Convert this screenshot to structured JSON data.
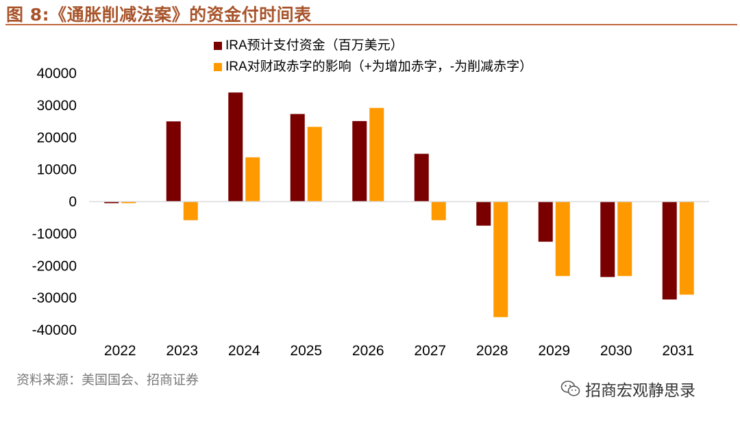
{
  "figure": {
    "title": "图 8:《通胀削减法案》的资金付时间表",
    "source": "资料来源：美国国会、招商证券",
    "watermark": "招商宏观静思录"
  },
  "colors": {
    "series1": "#7a0000",
    "series2": "#ff9900",
    "title": "#a8542b",
    "axis": "#d9d9d9"
  },
  "chart_data": {
    "type": "bar",
    "title": "",
    "xlabel": "",
    "ylabel": "",
    "ylim": [
      -40000,
      40000
    ],
    "yticks": [
      40000,
      30000,
      20000,
      10000,
      0,
      -10000,
      -20000,
      -30000,
      -40000
    ],
    "categories": [
      "2022",
      "2023",
      "2024",
      "2025",
      "2026",
      "2027",
      "2028",
      "2029",
      "2030",
      "2031"
    ],
    "legend_position": "top-center",
    "series": [
      {
        "name": "IRA预计支付资金（百万美元）",
        "color": "#7a0000",
        "values": [
          -500,
          25000,
          34000,
          27300,
          25100,
          14900,
          -7500,
          -12500,
          -23500,
          -30500
        ]
      },
      {
        "name": "IRA对财政赤字的影响（+为增加赤字，-为削减赤字）",
        "color": "#ff9900",
        "values": [
          -500,
          -5800,
          13800,
          23300,
          29200,
          -5800,
          -36000,
          -23200,
          -23200,
          -29000
        ]
      }
    ]
  }
}
